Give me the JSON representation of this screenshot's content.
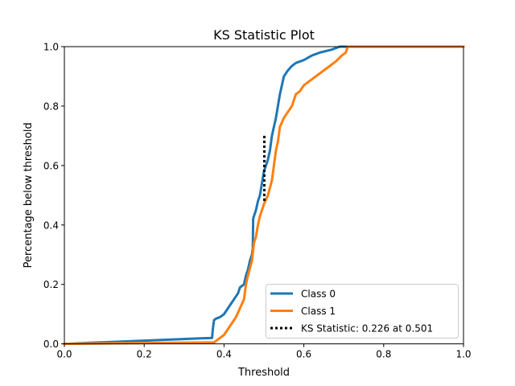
{
  "chart_data": {
    "type": "line",
    "title": "KS Statistic Plot",
    "xlabel": "Threshold",
    "ylabel": "Percentage below threshold",
    "xlim": [
      0,
      1
    ],
    "ylim": [
      0,
      1
    ],
    "xticks": [
      "0.0",
      "0.2",
      "0.4",
      "0.6",
      "0.8",
      "1.0"
    ],
    "yticks": [
      "0.0",
      "0.2",
      "0.4",
      "0.6",
      "0.8",
      "1.0"
    ],
    "grid": false,
    "legend_position": "lower-right",
    "series": [
      {
        "name": "Class 0",
        "color": "#1f77b4",
        "x": [
          0.0,
          0.37,
          0.372,
          0.375,
          0.38,
          0.39,
          0.4,
          0.41,
          0.42,
          0.43,
          0.435,
          0.44,
          0.45,
          0.455,
          0.46,
          0.465,
          0.47,
          0.472,
          0.473,
          0.475,
          0.48,
          0.485,
          0.49,
          0.495,
          0.5,
          0.505,
          0.51,
          0.515,
          0.52,
          0.525,
          0.53,
          0.535,
          0.54,
          0.545,
          0.55,
          0.56,
          0.57,
          0.58,
          0.6,
          0.62,
          0.64,
          0.67,
          0.69,
          0.7,
          1.0
        ],
        "y": [
          0.0,
          0.02,
          0.05,
          0.08,
          0.085,
          0.09,
          0.1,
          0.12,
          0.14,
          0.16,
          0.17,
          0.19,
          0.2,
          0.23,
          0.25,
          0.28,
          0.3,
          0.32,
          0.42,
          0.43,
          0.45,
          0.48,
          0.5,
          0.54,
          0.58,
          0.6,
          0.62,
          0.65,
          0.7,
          0.73,
          0.76,
          0.8,
          0.84,
          0.87,
          0.9,
          0.92,
          0.935,
          0.945,
          0.955,
          0.97,
          0.98,
          0.99,
          1.0,
          1.0,
          1.0
        ]
      },
      {
        "name": "Class 1",
        "color": "#ff7f0e",
        "x": [
          0.0,
          0.375,
          0.38,
          0.39,
          0.4,
          0.41,
          0.42,
          0.43,
          0.44,
          0.45,
          0.455,
          0.46,
          0.47,
          0.475,
          0.48,
          0.485,
          0.49,
          0.5,
          0.51,
          0.52,
          0.525,
          0.53,
          0.535,
          0.54,
          0.55,
          0.56,
          0.57,
          0.58,
          0.59,
          0.6,
          0.62,
          0.64,
          0.66,
          0.68,
          0.695,
          0.705,
          0.71,
          1.0
        ],
        "y": [
          0.0,
          0.005,
          0.01,
          0.02,
          0.03,
          0.05,
          0.07,
          0.09,
          0.12,
          0.15,
          0.2,
          0.23,
          0.28,
          0.34,
          0.36,
          0.4,
          0.43,
          0.47,
          0.5,
          0.55,
          0.6,
          0.65,
          0.68,
          0.73,
          0.76,
          0.78,
          0.8,
          0.84,
          0.85,
          0.87,
          0.89,
          0.91,
          0.93,
          0.95,
          0.97,
          0.98,
          1.0,
          1.0
        ]
      }
    ],
    "ks_statistic": {
      "label": "KS Statistic: 0.226 at 0.501",
      "value": 0.226,
      "threshold": 0.501,
      "y_low": 0.474,
      "y_high": 0.7,
      "color": "#000000"
    }
  }
}
